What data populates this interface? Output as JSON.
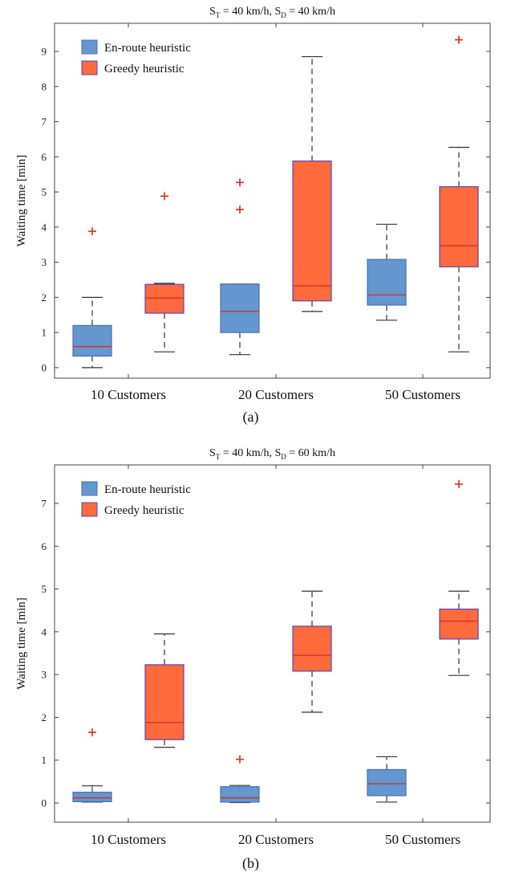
{
  "colors": {
    "enroute_fill": "#6497cf",
    "enroute_edge": "#4a6fb0",
    "greedy_fill": "#ff6a3d",
    "greedy_edge": "#5b46b8",
    "median": "#d7302a",
    "outlier": "#e32a22",
    "whisker": "#333333",
    "axis": "#444444"
  },
  "chart_data": [
    {
      "type": "box",
      "title": {
        "main": "S",
        "sub1": "T",
        "mid": " = 40 km/h, S",
        "sub2": "D",
        "tail": " = 40 km/h"
      },
      "ylabel": "Waiting time [min]",
      "caption": "(a)",
      "ylim": [
        -0.3,
        9.8
      ],
      "yticks": [
        "0",
        "1",
        "2",
        "3",
        "4",
        "5",
        "6",
        "7",
        "8",
        "9"
      ],
      "categories": [
        "10 Customers",
        "20 Customers",
        "50 Customers"
      ],
      "legend": {
        "position": "top-left"
      },
      "series": [
        {
          "name": "En-route heuristic",
          "color_key": "enroute",
          "boxes": [
            {
              "whisker_low": 0.0,
              "q1": 0.33,
              "median": 0.6,
              "q3": 1.2,
              "whisker_high": 2.0,
              "outliers": [
                3.88
              ]
            },
            {
              "whisker_low": 0.37,
              "q1": 1.0,
              "median": 1.6,
              "q3": 2.38,
              "whisker_high": 2.38,
              "outliers": [
                4.5,
                5.27
              ]
            },
            {
              "whisker_low": 1.35,
              "q1": 1.78,
              "median": 2.07,
              "q3": 3.08,
              "whisker_high": 4.08,
              "outliers": []
            }
          ]
        },
        {
          "name": "Greedy heuristic",
          "color_key": "greedy",
          "boxes": [
            {
              "whisker_low": 0.45,
              "q1": 1.55,
              "median": 1.98,
              "q3": 2.37,
              "whisker_high": 2.4,
              "outliers": [
                4.88
              ]
            },
            {
              "whisker_low": 1.6,
              "q1": 1.9,
              "median": 2.33,
              "q3": 5.88,
              "whisker_high": 8.85,
              "outliers": []
            },
            {
              "whisker_low": 0.45,
              "q1": 2.87,
              "median": 3.47,
              "q3": 5.15,
              "whisker_high": 6.27,
              "outliers": [
                9.33
              ]
            }
          ]
        }
      ]
    },
    {
      "type": "box",
      "title": {
        "main": "S",
        "sub1": "T",
        "mid": " = 40 km/h, S",
        "sub2": "D",
        "tail": " = 60 km/h"
      },
      "ylabel": "Waiting time [min]",
      "caption": "(b)",
      "ylim": [
        -0.45,
        7.9
      ],
      "yticks": [
        "0",
        "1",
        "2",
        "3",
        "4",
        "5",
        "6",
        "7"
      ],
      "categories": [
        "10 Customers",
        "20 Customers",
        "50 Customers"
      ],
      "legend": {
        "position": "top-left"
      },
      "series": [
        {
          "name": "En-route heuristic",
          "color_key": "enroute",
          "boxes": [
            {
              "whisker_low": 0.02,
              "q1": 0.03,
              "median": 0.12,
              "q3": 0.25,
              "whisker_high": 0.4,
              "outliers": [
                1.65
              ]
            },
            {
              "whisker_low": 0.01,
              "q1": 0.02,
              "median": 0.12,
              "q3": 0.38,
              "whisker_high": 0.41,
              "outliers": [
                1.02
              ]
            },
            {
              "whisker_low": 0.02,
              "q1": 0.17,
              "median": 0.45,
              "q3": 0.78,
              "whisker_high": 1.08,
              "outliers": []
            }
          ]
        },
        {
          "name": "Greedy heuristic",
          "color_key": "greedy",
          "boxes": [
            {
              "whisker_low": 1.3,
              "q1": 1.48,
              "median": 1.88,
              "q3": 3.23,
              "whisker_high": 3.95,
              "outliers": []
            },
            {
              "whisker_low": 2.12,
              "q1": 3.08,
              "median": 3.45,
              "q3": 4.13,
              "whisker_high": 4.95,
              "outliers": []
            },
            {
              "whisker_low": 2.98,
              "q1": 3.83,
              "median": 4.25,
              "q3": 4.53,
              "whisker_high": 4.95,
              "outliers": [
                7.45
              ]
            }
          ]
        }
      ]
    }
  ]
}
